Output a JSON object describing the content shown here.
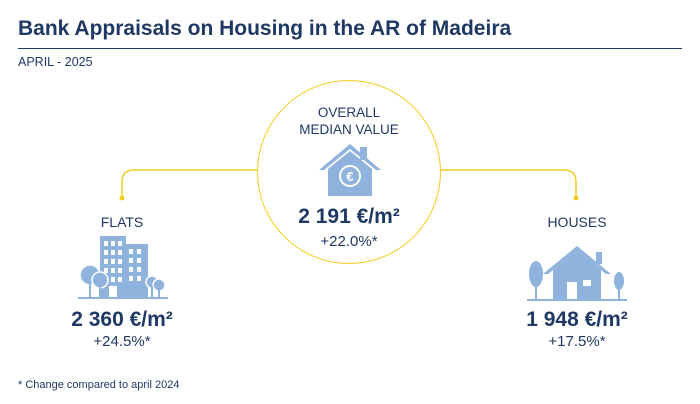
{
  "header": {
    "title": "Bank Appraisals on Housing in the AR of Madeira",
    "subtitle": "APRIL - 2025"
  },
  "overall": {
    "label_line1": "OVERALL",
    "label_line2": "MEDIAN VALUE",
    "value": "2 191 €/m²",
    "change": "+22.0%*",
    "icon": "euro-house-icon"
  },
  "flats": {
    "label": "FLATS",
    "value": "2 360 €/m²",
    "change": "+24.5%*",
    "icon": "apartment-building-icon"
  },
  "houses": {
    "label": "HOUSES",
    "value": "1 948 €/m²",
    "change": "+17.5%*",
    "icon": "house-with-trees-icon"
  },
  "footnote": "* Change compared to april 2024",
  "colors": {
    "primary": "#1f3864",
    "accent": "#f2cc1f",
    "icon_fill": "#8fb3dc"
  }
}
